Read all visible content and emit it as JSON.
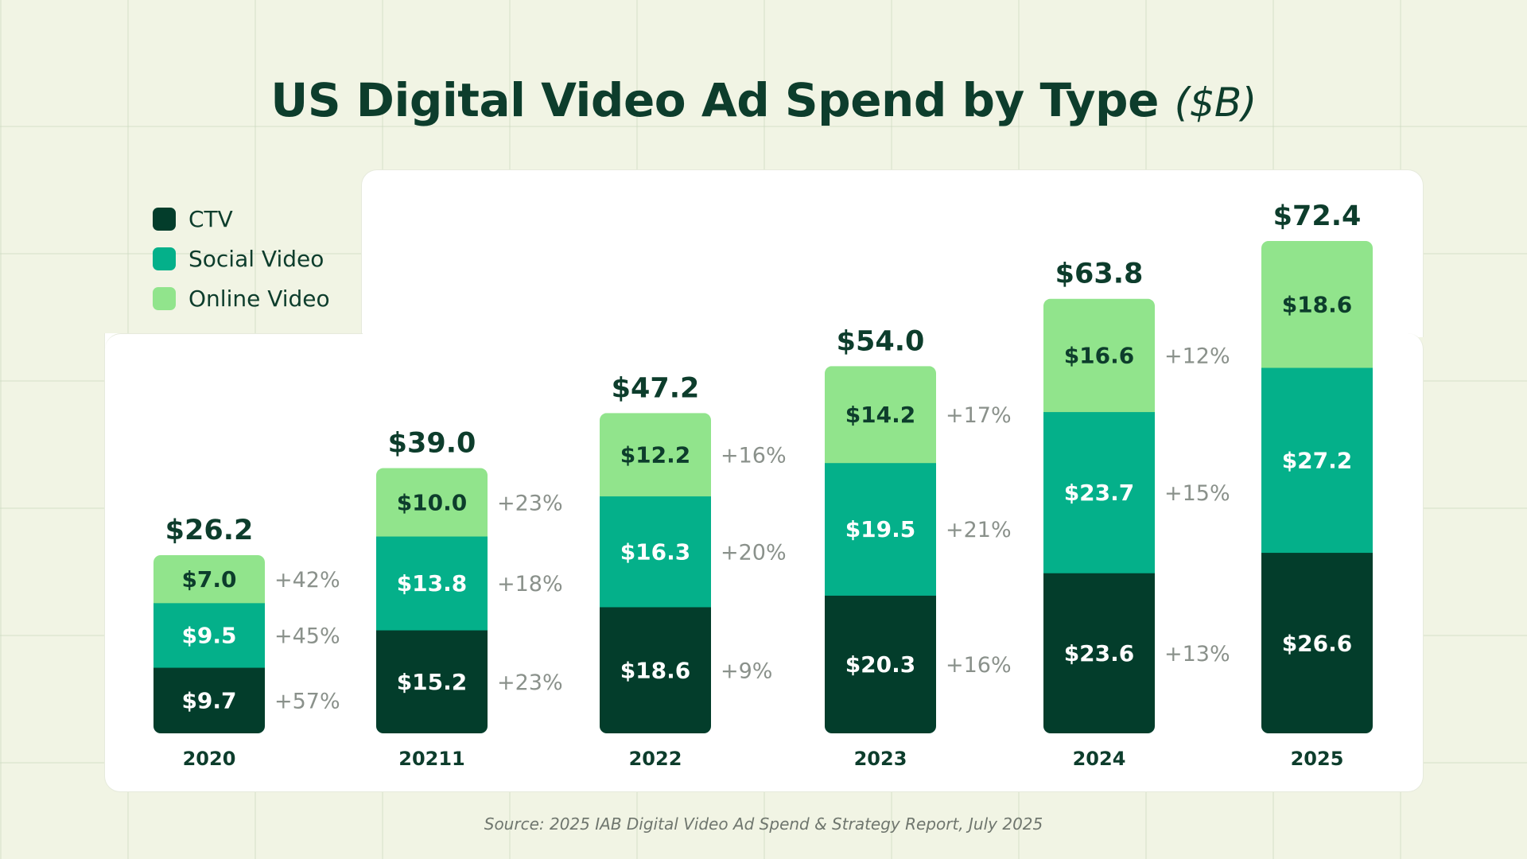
{
  "title": "US Digital Video Ad Spend by Type",
  "title_unit": "($B)",
  "source": "Source: 2025 IAB Digital Video Ad Spend & Strategy Report, July 2025",
  "colors": {
    "ctv": "#033d2b",
    "social_video": "#04b08a",
    "online_video": "#91e48c",
    "growth_text": "#8a918b",
    "total_text": "#0d3d2c"
  },
  "legend": [
    {
      "label": "CTV",
      "color": "#033d2b"
    },
    {
      "label": "Social Video",
      "color": "#04b08a"
    },
    {
      "label": "Online Video",
      "color": "#91e48c"
    }
  ],
  "chart_data": {
    "type": "bar",
    "stacked": true,
    "title": "US Digital Video Ad Spend by Type ($B)",
    "categories": [
      "2020",
      "20211",
      "2022",
      "2023",
      "2024",
      "2025"
    ],
    "totals": [
      "$26.2",
      "$39.0",
      "$47.2",
      "$54.0",
      "$63.8",
      "$72.4"
    ],
    "series": [
      {
        "name": "CTV",
        "values": [
          9.7,
          15.2,
          18.6,
          20.3,
          23.6,
          26.6
        ],
        "labels": [
          "$9.7",
          "$15.2",
          "$18.6",
          "$20.3",
          "$23.6",
          "$26.6"
        ],
        "growth": [
          "+57%",
          "+23%",
          "+9%",
          "+16%",
          "+13%",
          ""
        ]
      },
      {
        "name": "Social Video",
        "values": [
          9.5,
          13.8,
          16.3,
          19.5,
          23.7,
          27.2
        ],
        "labels": [
          "$9.5",
          "$13.8",
          "$16.3",
          "$19.5",
          "$23.7",
          "$27.2"
        ],
        "growth": [
          "+45%",
          "+18%",
          "+20%",
          "+21%",
          "+15%",
          ""
        ]
      },
      {
        "name": "Online Video",
        "values": [
          7.0,
          10.0,
          12.2,
          14.2,
          16.6,
          18.6
        ],
        "labels": [
          "$7.0",
          "$10.0",
          "$12.2",
          "$14.2",
          "$16.6",
          "$18.6"
        ],
        "growth": [
          "+42%",
          "+23%",
          "+16%",
          "+17%",
          "+12%",
          ""
        ]
      }
    ],
    "legend_position": "top-left",
    "grid": false
  }
}
